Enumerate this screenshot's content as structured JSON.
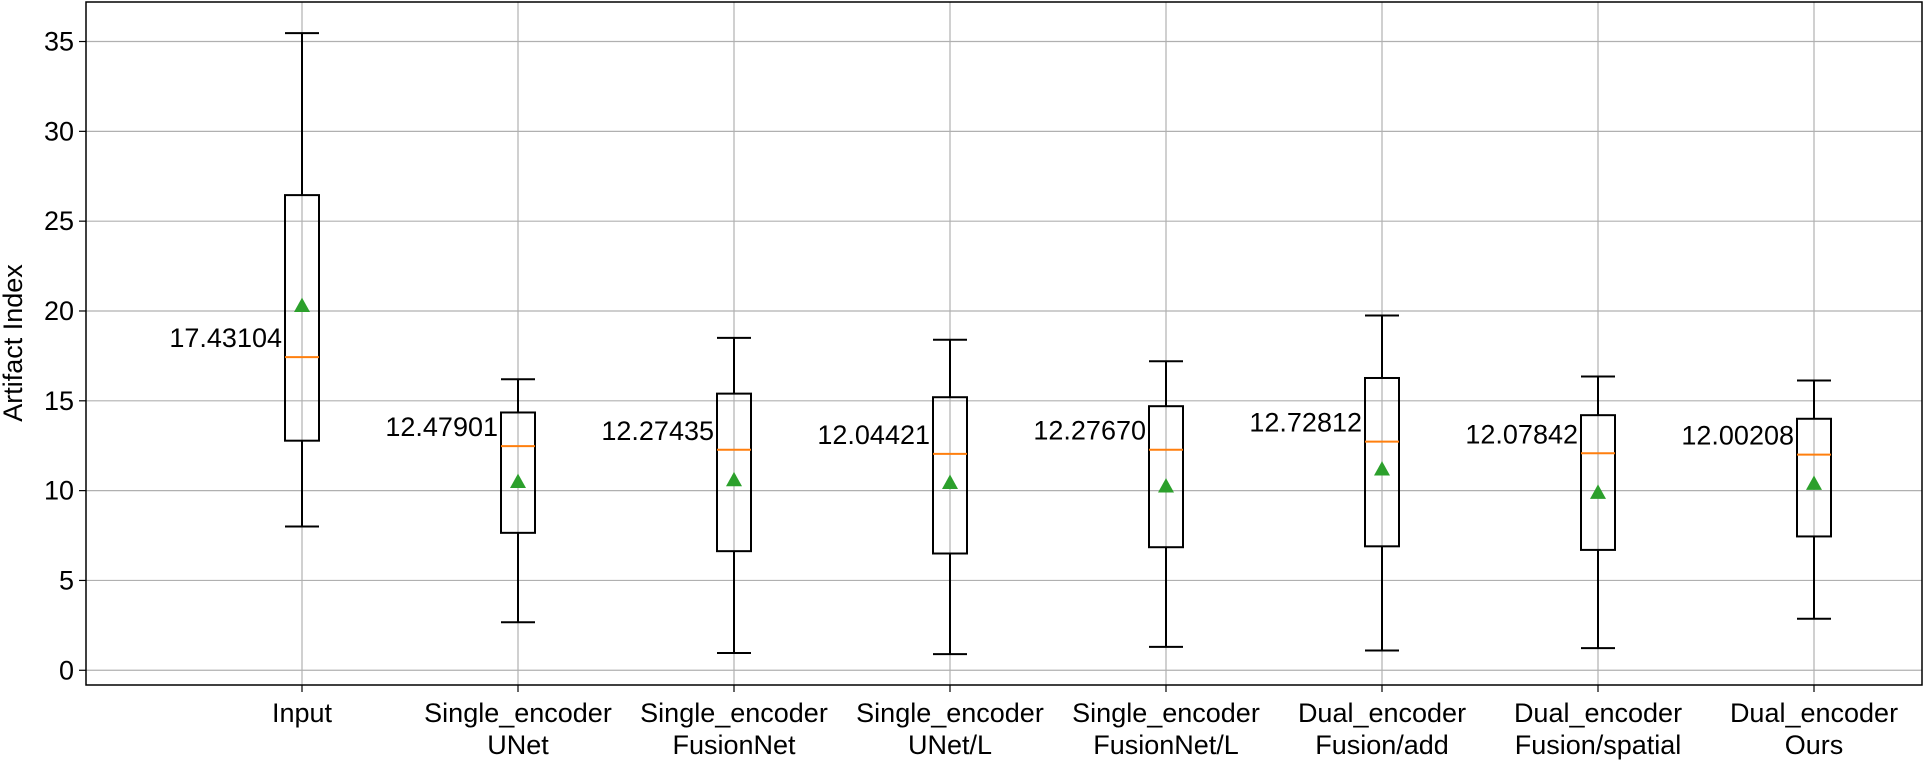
{
  "chart_data": {
    "type": "box",
    "y_label": "Artifact Index",
    "categories": [
      [
        "Input"
      ],
      [
        "Single_encoder",
        "UNet"
      ],
      [
        "Single_encoder",
        "FusionNet"
      ],
      [
        "Single_encoder",
        "UNet/L"
      ],
      [
        "Single_encoder",
        "FusionNet/L"
      ],
      [
        "Dual_encoder",
        "Fusion/add"
      ],
      [
        "Dual_encoder",
        "Fusion/spatial"
      ],
      [
        "Dual_encoder",
        "Ours"
      ]
    ],
    "boxes": [
      {
        "whislo": 8.0,
        "q1": 12.78,
        "med": 17.43104,
        "q3": 26.45,
        "whishi": 35.47,
        "mean": 20.3
      },
      {
        "whislo": 2.67,
        "q1": 7.65,
        "med": 12.47901,
        "q3": 14.35,
        "whishi": 16.2,
        "mean": 10.5
      },
      {
        "whislo": 0.96,
        "q1": 6.63,
        "med": 12.27435,
        "q3": 15.4,
        "whishi": 18.5,
        "mean": 10.6
      },
      {
        "whislo": 0.9,
        "q1": 6.5,
        "med": 12.04421,
        "q3": 15.2,
        "whishi": 18.4,
        "mean": 10.45
      },
      {
        "whislo": 1.3,
        "q1": 6.85,
        "med": 12.2767,
        "q3": 14.7,
        "whishi": 17.2,
        "mean": 10.25
      },
      {
        "whislo": 1.1,
        "q1": 6.9,
        "med": 12.72812,
        "q3": 16.27,
        "whishi": 19.75,
        "mean": 11.2
      },
      {
        "whislo": 1.23,
        "q1": 6.7,
        "med": 12.07842,
        "q3": 14.2,
        "whishi": 16.35,
        "mean": 9.9
      },
      {
        "whislo": 2.87,
        "q1": 7.45,
        "med": 12.00208,
        "q3": 14.0,
        "whishi": 16.13,
        "mean": 10.4
      }
    ],
    "median_labels": [
      "17.43104",
      "12.47901",
      "12.27435",
      "12.04421",
      "12.27670",
      "12.72812",
      "12.07842",
      "12.00208"
    ],
    "ylim": [
      -0.82,
      37.2
    ],
    "yticks": [
      0,
      5,
      10,
      15,
      20,
      25,
      30,
      35
    ],
    "grid": true,
    "box_color": "#000000",
    "median_color": "#ff7f0e",
    "mean_color": "#2ca02c"
  }
}
